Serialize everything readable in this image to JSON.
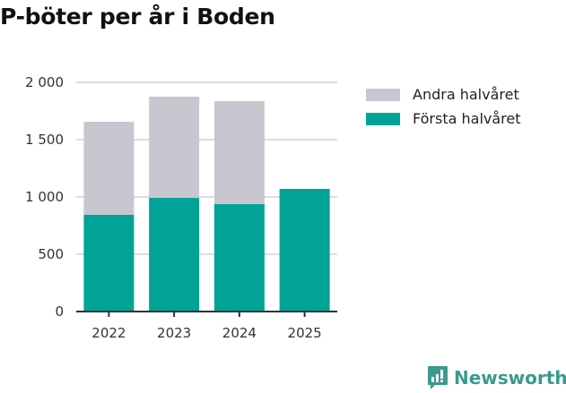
{
  "chart_data": {
    "type": "bar",
    "stacked": true,
    "title": "P-böter per år i Boden",
    "categories": [
      "2022",
      "2023",
      "2024",
      "2025"
    ],
    "series": [
      {
        "name": "Första halvåret",
        "color": "#00a396",
        "values": [
          844,
          992,
          938,
          1070
        ]
      },
      {
        "name": "Andra halvåret",
        "color": "#c8c7d0",
        "values": [
          812,
          883,
          898,
          null
        ]
      }
    ],
    "yticks": [
      0,
      500,
      1000,
      1500,
      2000
    ],
    "ytick_labels": [
      "0",
      "500",
      "1 000",
      "1 500",
      "2 000"
    ],
    "ylim": [
      0,
      2000
    ],
    "legend": "right",
    "grid": true
  },
  "legend_order": [
    "Andra halvåret",
    "Första halvåret"
  ],
  "brand": "Newsworthy"
}
